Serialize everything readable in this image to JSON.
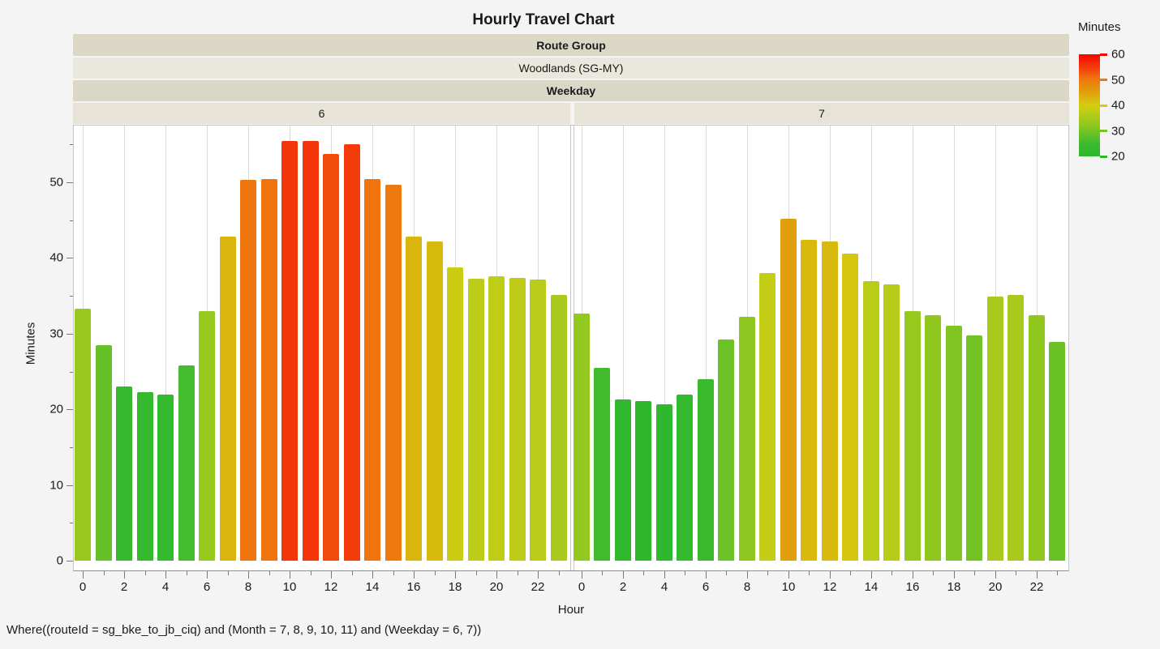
{
  "title": "Hourly Travel Chart",
  "header_bands": {
    "route_group_label": "Route Group",
    "route_group_value": "Woodlands (SG-MY)",
    "weekday_label": "Weekday",
    "panel_labels": [
      "6",
      "7"
    ]
  },
  "chart_data": {
    "type": "bar",
    "title": "Hourly Travel Chart",
    "facet_header_rows": [
      "Route Group",
      "Woodlands (SG-MY)",
      "Weekday"
    ],
    "facets": [
      "6",
      "7"
    ],
    "xlabel": "Hour",
    "ylabel": "Minutes",
    "x": [
      0,
      1,
      2,
      3,
      4,
      5,
      6,
      7,
      8,
      9,
      10,
      11,
      12,
      13,
      14,
      15,
      16,
      17,
      18,
      19,
      20,
      21,
      22,
      23
    ],
    "series": [
      {
        "name": "Weekday 6",
        "values": [
          33.3,
          28.5,
          23.0,
          22.3,
          22.0,
          25.8,
          33.0,
          42.8,
          50.3,
          50.4,
          55.5,
          55.5,
          53.7,
          55.0,
          50.4,
          49.7,
          42.8,
          42.2,
          38.8,
          37.3,
          37.6,
          37.4,
          37.1,
          35.1
        ]
      },
      {
        "name": "Weekday 7",
        "values": [
          32.7,
          25.5,
          21.3,
          21.1,
          20.7,
          22.0,
          24.0,
          29.2,
          32.2,
          38.0,
          45.2,
          42.4,
          42.2,
          40.6,
          36.9,
          36.5,
          33.0,
          32.4,
          31.0,
          29.8,
          34.9,
          35.1,
          32.4,
          28.9
        ]
      }
    ],
    "ylim": [
      0,
      57.5
    ],
    "y_major_ticks": [
      0,
      10,
      20,
      30,
      40,
      50
    ],
    "y_minor_ticks": [
      5,
      15,
      25,
      35,
      45,
      55
    ],
    "x_label_step": 2,
    "grid": "vertical-only",
    "legend_position": "top-right",
    "color_scale": {
      "title": "Minutes",
      "min": 20,
      "max": 60,
      "ticks": [
        60,
        50,
        40,
        30,
        20
      ],
      "stops": [
        {
          "v": 20,
          "color": "#2DB72D"
        },
        {
          "v": 25,
          "color": "#3CBB2F"
        },
        {
          "v": 30,
          "color": "#76C324"
        },
        {
          "v": 33,
          "color": "#96C81E"
        },
        {
          "v": 35,
          "color": "#A8CA1C"
        },
        {
          "v": 38,
          "color": "#C3CD16"
        },
        {
          "v": 40,
          "color": "#D4CC10"
        },
        {
          "v": 42.5,
          "color": "#D9B80E"
        },
        {
          "v": 45.5,
          "color": "#E39C0D"
        },
        {
          "v": 50.5,
          "color": "#F0740E"
        },
        {
          "v": 53.7,
          "color": "#F24A0A"
        },
        {
          "v": 55.5,
          "color": "#F3360A"
        },
        {
          "v": 60,
          "color": "#F50500"
        }
      ]
    }
  },
  "axes": {
    "xlabel": "Hour",
    "ylabel": "Minutes",
    "y_tick_labels": [
      "0",
      "10",
      "20",
      "30",
      "40",
      "50"
    ],
    "x_tick_labels": [
      "0",
      "2",
      "4",
      "6",
      "8",
      "10",
      "12",
      "14",
      "16",
      "18",
      "20",
      "22"
    ]
  },
  "legend": {
    "title": "Minutes",
    "tick_labels": [
      "60",
      "50",
      "40",
      "30",
      "20"
    ]
  },
  "footer": "Where((routeId = sg_bke_to_jb_ciq) and (Month = 7, 8, 9, 10, 11) and (Weekday = 6, 7))",
  "colors": {
    "page_bg": "#F4F4F4",
    "plot_bg": "#FFFFFF",
    "band_dark": "#DBD7C7",
    "band_light": "#EAE7DC",
    "band_panel": "#E7E3D6",
    "gridline": "#DBDBDB",
    "axis_line": "#909090",
    "border": "#C6C6C6",
    "text": "#1A1A1A"
  }
}
